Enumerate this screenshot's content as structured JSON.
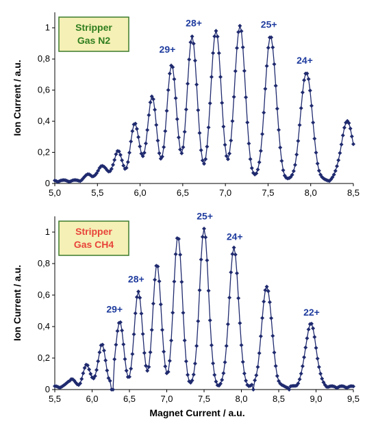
{
  "chart_data": [
    {
      "type": "line",
      "ylabel": "Ion Current / a.u.",
      "xlabel": "",
      "xlim": [
        5.0,
        8.5
      ],
      "ylim": [
        0,
        1.1
      ],
      "xticks": [
        "5,0",
        "5,5",
        "6,0",
        "6,5",
        "7,0",
        "7,5",
        "8,0",
        "8,5"
      ],
      "yticks": [
        "0",
        "0,2",
        "0,4",
        "0,6",
        "0,8",
        "1"
      ],
      "grid": false,
      "box_lines": [
        "Stripper",
        "Gas N2"
      ],
      "colors": {
        "series": "#1f2a6e",
        "peak_label": "#1f3c9e",
        "box_text": "#2e7d1e",
        "box_fill": "#f5f0b5",
        "box_border": "#3a7a2a"
      },
      "peaks": [
        {
          "x": 5.4,
          "y": 0.04
        },
        {
          "x": 5.56,
          "y": 0.1
        },
        {
          "x": 5.74,
          "y": 0.19
        },
        {
          "x": 5.94,
          "y": 0.37
        },
        {
          "x": 6.14,
          "y": 0.54
        },
        {
          "x": 6.37,
          "y": 0.75
        },
        {
          "x": 6.61,
          "y": 0.93
        },
        {
          "x": 6.89,
          "y": 0.97
        },
        {
          "x": 7.17,
          "y": 1.0
        },
        {
          "x": 7.53,
          "y": 0.93
        },
        {
          "x": 7.95,
          "y": 0.7
        },
        {
          "x": 8.43,
          "y": 0.38
        }
      ],
      "peak_labels": [
        {
          "text": "29+",
          "x": 6.32,
          "y": 0.84
        },
        {
          "text": "28+",
          "x": 6.63,
          "y": 1.01
        },
        {
          "text": "25+",
          "x": 7.51,
          "y": 1.0
        },
        {
          "text": "24+",
          "x": 7.93,
          "y": 0.77
        }
      ]
    },
    {
      "type": "line",
      "ylabel": "Ion Current / a.u.",
      "xlabel": "Magnet Current / a.u.",
      "xlim": [
        5.5,
        9.5
      ],
      "ylim": [
        0,
        1.1
      ],
      "xticks": [
        "5,5",
        "6,0",
        "6,5",
        "7,0",
        "7,5",
        "8,0",
        "8,5",
        "9,0",
        "9,5"
      ],
      "yticks": [
        "0",
        "0,2",
        "0,4",
        "0,6",
        "0,8",
        "1"
      ],
      "grid": false,
      "box_lines": [
        "Stripper",
        "Gas CH4"
      ],
      "colors": {
        "series": "#1f2a6e",
        "peak_label": "#1f3c9e",
        "box_text": "#e8433a",
        "box_fill": "#f5f0b5",
        "box_border": "#3a7a2a"
      },
      "peaks": [
        {
          "x": 5.72,
          "y": 0.05
        },
        {
          "x": 5.93,
          "y": 0.14
        },
        {
          "x": 6.13,
          "y": 0.27
        },
        {
          "x": 6.37,
          "y": 0.42
        },
        {
          "x": 6.62,
          "y": 0.61
        },
        {
          "x": 6.87,
          "y": 0.78
        },
        {
          "x": 7.15,
          "y": 0.96
        },
        {
          "x": 7.5,
          "y": 1.0
        },
        {
          "x": 7.9,
          "y": 0.88
        },
        {
          "x": 8.34,
          "y": 0.64
        },
        {
          "x": 8.93,
          "y": 0.4
        }
      ],
      "dips": [
        {
          "x": 6.27,
          "y": 0.0
        },
        {
          "x": 8.16,
          "y": 0.0
        },
        {
          "x": 8.64,
          "y": 0.0
        }
      ],
      "peak_labels": [
        {
          "text": "29+",
          "x": 6.3,
          "y": 0.49
        },
        {
          "text": "28+",
          "x": 6.59,
          "y": 0.68
        },
        {
          "text": "25+",
          "x": 7.51,
          "y": 1.08
        },
        {
          "text": "24+",
          "x": 7.91,
          "y": 0.95
        },
        {
          "text": "22+",
          "x": 8.94,
          "y": 0.47
        }
      ]
    }
  ]
}
